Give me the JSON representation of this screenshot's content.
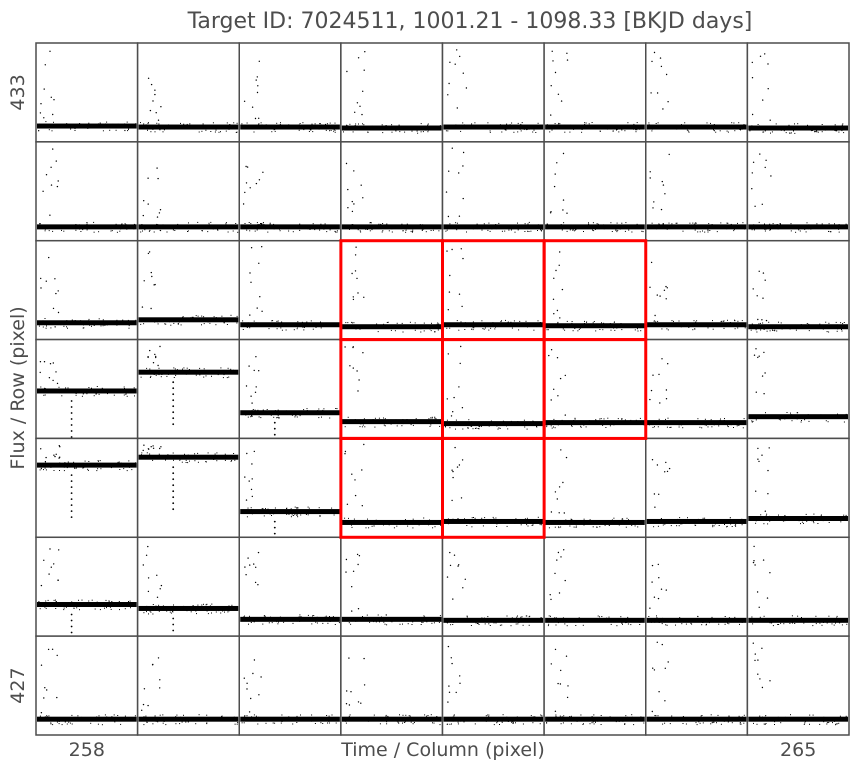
{
  "chart_data": {
    "type": "scatter",
    "layout": "pixel-grid",
    "title": "Target ID: 7024511, 1001.21 - 1098.33 [BKJD days]",
    "xlabel": "Time / Column (pixel)",
    "ylabel": "Flux / Row (pixel)",
    "x_tick_labels": [
      {
        "column": 258,
        "label": "258"
      },
      {
        "column": 265,
        "label": "265"
      }
    ],
    "y_tick_labels": [
      {
        "row": 433,
        "label": "433"
      },
      {
        "row": 427,
        "label": "427"
      }
    ],
    "columns": [
      258,
      259,
      260,
      261,
      262,
      263,
      264,
      265
    ],
    "rows": [
      433,
      432,
      431,
      430,
      429,
      428,
      427
    ],
    "time_range": [
      1001.21,
      1098.33
    ],
    "aperture_pixels": [
      {
        "row": 431,
        "column": 261
      },
      {
        "row": 431,
        "column": 262
      },
      {
        "row": 431,
        "column": 263
      },
      {
        "row": 430,
        "column": 261
      },
      {
        "row": 430,
        "column": 262
      },
      {
        "row": 430,
        "column": 263
      },
      {
        "row": 429,
        "column": 261
      },
      {
        "row": 429,
        "column": 262
      }
    ],
    "baseline_flux_fraction": [
      [
        0.16,
        0.15,
        0.15,
        0.14,
        0.15,
        0.15,
        0.15,
        0.14
      ],
      [
        0.14,
        0.14,
        0.14,
        0.14,
        0.14,
        0.14,
        0.14,
        0.14
      ],
      [
        0.17,
        0.2,
        0.15,
        0.13,
        0.15,
        0.14,
        0.15,
        0.13
      ],
      [
        0.48,
        0.67,
        0.26,
        0.17,
        0.15,
        0.16,
        0.16,
        0.22
      ],
      [
        0.73,
        0.81,
        0.26,
        0.15,
        0.16,
        0.15,
        0.16,
        0.19
      ],
      [
        0.32,
        0.28,
        0.17,
        0.17,
        0.16,
        0.16,
        0.16,
        0.16
      ],
      [
        0.16,
        0.16,
        0.16,
        0.16,
        0.16,
        0.16,
        0.16,
        0.16
      ]
    ],
    "grid": false,
    "colors": {
      "points": "#000000",
      "frame": "#4d4d4d",
      "aperture": "#ff0000",
      "text": "#4d4d4d"
    }
  }
}
